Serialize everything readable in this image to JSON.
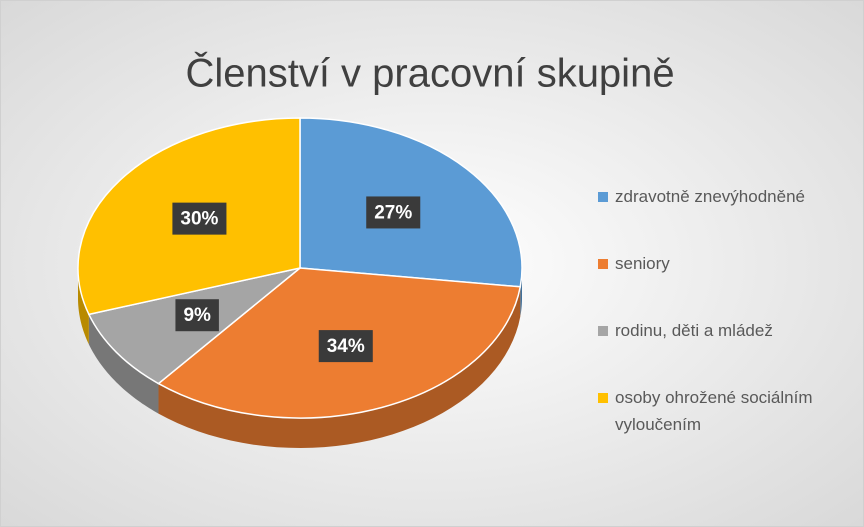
{
  "chart_data": {
    "type": "pie",
    "title": "Členství v pracovní skupině",
    "categories": [
      "zdravotně znevýhodněné",
      "seniory",
      "rodinu, děti a mládež",
      "osoby ohrožené sociálním vyloučením"
    ],
    "values": [
      27,
      34,
      9,
      30
    ],
    "value_labels": [
      "27%",
      "34%",
      "9%",
      "30%"
    ],
    "colors": [
      "#5b9bd5",
      "#ed7d31",
      "#a5a5a5",
      "#ffc000"
    ],
    "legend": "right"
  }
}
